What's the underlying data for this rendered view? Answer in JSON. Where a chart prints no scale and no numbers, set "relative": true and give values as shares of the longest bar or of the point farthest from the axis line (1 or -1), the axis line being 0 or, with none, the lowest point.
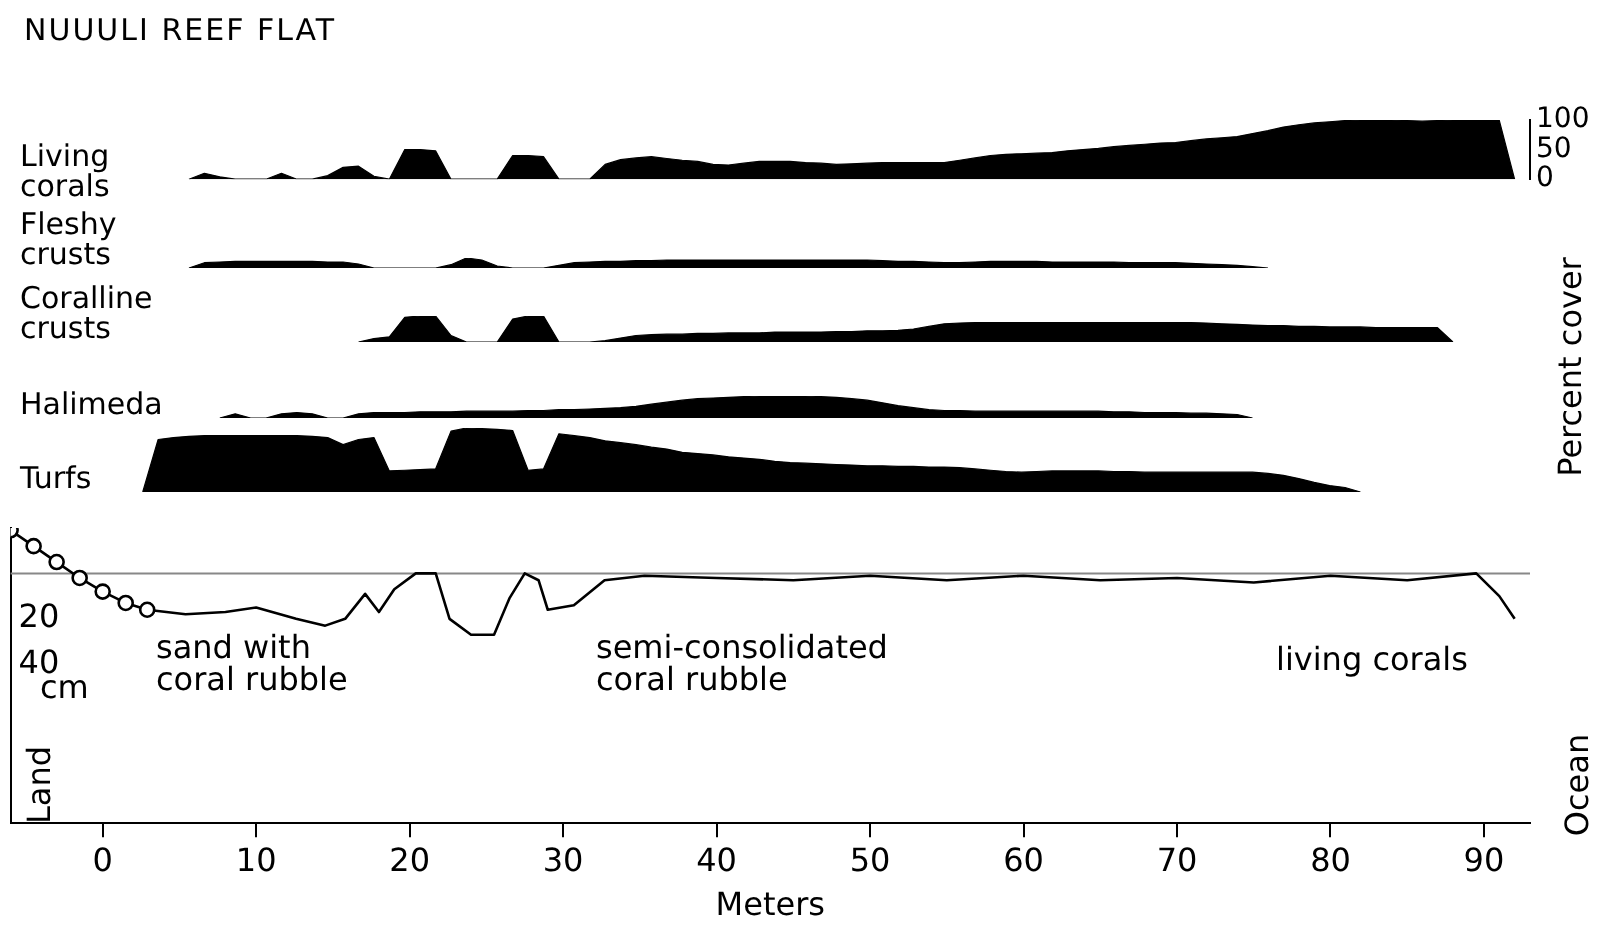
{
  "chart_data": [
    {
      "type": "area",
      "title": "NUUULI REEF FLAT",
      "ylabel": "Percent cover",
      "ylim": [
        0,
        100
      ],
      "yticks": [
        0,
        50,
        100
      ],
      "tick_labels": "y",
      "categories": [
        null,
        null,
        null,
        null,
        null,
        null,
        null,
        null,
        null,
        null,
        null,
        null,
        null,
        null,
        null,
        null,
        null,
        null,
        null,
        null,
        null,
        null,
        null,
        null,
        null,
        null,
        null,
        null,
        null,
        null,
        null,
        null,
        null,
        null,
        null,
        null,
        null,
        null,
        null,
        null,
        null,
        null,
        null,
        null,
        null,
        null,
        null,
        null,
        null,
        null,
        null,
        null,
        null,
        null,
        null,
        null,
        null,
        null,
        null,
        null,
        null,
        null,
        null,
        null,
        null,
        null,
        null,
        null,
        null,
        null,
        null,
        null,
        null,
        null,
        null,
        null,
        null,
        null,
        null,
        null,
        null,
        null,
        null,
        null,
        null,
        null,
        null,
        null,
        null,
        null,
        null,
        null,
        null,
        null,
        null,
        null,
        null,
        null,
        null,
        null
      ],
      "series": [
        {
          "name": "Living corals",
          "color": "#000000",
          "values": [
            null,
            null,
            null,
            null,
            null,
            null,
            null,
            null,
            null,
            null,
            null,
            null,
            0,
            10,
            4,
            0,
            0,
            0,
            10,
            0,
            0,
            6,
            20,
            22,
            5,
            0,
            50,
            50,
            48,
            0,
            0,
            0,
            0,
            40,
            40,
            38,
            0,
            0,
            0,
            25,
            33,
            36,
            38,
            35,
            32,
            30,
            25,
            24,
            27,
            30,
            30,
            30,
            28,
            27,
            25,
            26,
            27,
            28,
            28,
            28,
            28,
            28,
            32,
            36,
            40,
            42,
            43,
            44,
            45,
            48,
            50,
            52,
            55,
            57,
            59,
            61,
            62,
            65,
            68,
            70,
            72,
            77,
            82,
            88,
            92,
            95,
            97,
            99,
            100,
            100,
            100,
            99,
            98,
            99,
            100,
            100,
            100,
            100,
            0,
            null
          ]
        }
      ]
    },
    {
      "type": "area",
      "relative": true,
      "tick_labels": false,
      "categories": [
        null,
        null,
        null,
        null,
        null,
        null,
        null,
        null,
        null,
        null,
        null,
        null,
        null,
        null,
        null,
        null,
        null,
        null,
        null,
        null,
        null,
        null,
        null,
        null,
        null,
        null,
        null,
        null,
        null,
        null,
        null,
        null,
        null,
        null,
        null,
        null,
        null,
        null,
        null,
        null,
        null,
        null,
        null,
        null,
        null,
        null,
        null,
        null,
        null,
        null,
        null,
        null,
        null,
        null,
        null,
        null,
        null,
        null,
        null,
        null,
        null,
        null,
        null,
        null,
        null,
        null,
        null,
        null,
        null,
        null,
        null,
        null,
        null,
        null,
        null,
        null,
        null,
        null,
        null,
        null,
        null,
        null,
        null,
        null,
        null,
        null,
        null,
        null,
        null,
        null,
        null,
        null,
        null,
        null,
        null,
        null,
        null,
        null,
        null,
        null
      ],
      "series": [
        {
          "name": "Fleshy crusts",
          "color": "#000000",
          "values": [
            null,
            null,
            null,
            null,
            null,
            null,
            null,
            null,
            null,
            null,
            null,
            null,
            0,
            0.53,
            0.6,
            0.67,
            0.67,
            0.67,
            0.67,
            0.67,
            0.67,
            0.6,
            0.6,
            0.4,
            0,
            0,
            0,
            0,
            0,
            0.33,
            1,
            0.8,
            0.2,
            0,
            0,
            0,
            0.27,
            0.53,
            0.6,
            0.67,
            0.67,
            0.73,
            0.73,
            0.8,
            0.8,
            0.8,
            0.8,
            0.8,
            0.8,
            0.8,
            0.8,
            0.8,
            0.8,
            0.8,
            0.8,
            0.8,
            0.8,
            0.73,
            0.67,
            0.67,
            0.6,
            0.53,
            0.53,
            0.6,
            0.67,
            0.67,
            0.67,
            0.67,
            0.6,
            0.6,
            0.6,
            0.6,
            0.6,
            0.53,
            0.53,
            0.53,
            0.53,
            0.47,
            0.4,
            0.33,
            0.27,
            0.13,
            0,
            null,
            null,
            null,
            null,
            null,
            null,
            null,
            null,
            null,
            null,
            null,
            null,
            null,
            null,
            null,
            null,
            null
          ]
        }
      ]
    },
    {
      "type": "area",
      "relative": true,
      "tick_labels": false,
      "categories": [
        null,
        null,
        null,
        null,
        null,
        null,
        null,
        null,
        null,
        null,
        null,
        null,
        null,
        null,
        null,
        null,
        null,
        null,
        null,
        null,
        null,
        null,
        null,
        null,
        null,
        null,
        null,
        null,
        null,
        null,
        null,
        null,
        null,
        null,
        null,
        null,
        null,
        null,
        null,
        null,
        null,
        null,
        null,
        null,
        null,
        null,
        null,
        null,
        null,
        null,
        null,
        null,
        null,
        null,
        null,
        null,
        null,
        null,
        null,
        null,
        null,
        null,
        null,
        null,
        null,
        null,
        null,
        null,
        null,
        null,
        null,
        null,
        null,
        null,
        null,
        null,
        null,
        null,
        null,
        null,
        null,
        null,
        null,
        null,
        null,
        null,
        null,
        null,
        null,
        null,
        null,
        null,
        null,
        null,
        null,
        null,
        null,
        null,
        null,
        null
      ],
      "series": [
        {
          "name": "Coralline crusts",
          "color": "#000000",
          "values": [
            null,
            null,
            null,
            null,
            null,
            null,
            null,
            null,
            null,
            null,
            null,
            null,
            null,
            null,
            null,
            null,
            null,
            null,
            null,
            null,
            null,
            null,
            null,
            0,
            0.13,
            0.2,
            0.95,
            1,
            1,
            0.25,
            0,
            0,
            0,
            0.88,
            1,
            1,
            0,
            0,
            0,
            0.05,
            0.15,
            0.25,
            0.28,
            0.3,
            0.3,
            0.33,
            0.33,
            0.35,
            0.35,
            0.35,
            0.38,
            0.38,
            0.38,
            0.38,
            0.4,
            0.4,
            0.43,
            0.43,
            0.45,
            0.5,
            0.6,
            0.7,
            0.73,
            0.75,
            0.75,
            0.75,
            0.75,
            0.75,
            0.75,
            0.75,
            0.75,
            0.75,
            0.75,
            0.75,
            0.75,
            0.75,
            0.75,
            0.75,
            0.73,
            0.7,
            0.68,
            0.65,
            0.63,
            0.63,
            0.6,
            0.6,
            0.58,
            0.58,
            0.58,
            0.55,
            0.55,
            0.55,
            0.55,
            0.55,
            0,
            null,
            null,
            null,
            null,
            null
          ]
        }
      ]
    },
    {
      "type": "area",
      "relative": true,
      "tick_labels": false,
      "categories": [
        null,
        null,
        null,
        null,
        null,
        null,
        null,
        null,
        null,
        null,
        null,
        null,
        null,
        null,
        null,
        null,
        null,
        null,
        null,
        null,
        null,
        null,
        null,
        null,
        null,
        null,
        null,
        null,
        null,
        null,
        null,
        null,
        null,
        null,
        null,
        null,
        null,
        null,
        null,
        null,
        null,
        null,
        null,
        null,
        null,
        null,
        null,
        null,
        null,
        null,
        null,
        null,
        null,
        null,
        null,
        null,
        null,
        null,
        null,
        null,
        null,
        null,
        null,
        null,
        null,
        null,
        null,
        null,
        null,
        null,
        null,
        null,
        null,
        null,
        null,
        null,
        null,
        null,
        null,
        null,
        null,
        null,
        null,
        null,
        null,
        null,
        null,
        null,
        null,
        null,
        null,
        null,
        null,
        null,
        null,
        null,
        null,
        null,
        null,
        null
      ],
      "series": [
        {
          "name": "Halimeda",
          "color": "#000000",
          "values": [
            null,
            null,
            null,
            null,
            null,
            null,
            null,
            null,
            null,
            null,
            null,
            null,
            null,
            null,
            0,
            0.19,
            0,
            0,
            0.19,
            0.25,
            0.19,
            0,
            0,
            0.19,
            0.25,
            0.25,
            0.25,
            0.28,
            0.28,
            0.28,
            0.31,
            0.31,
            0.31,
            0.31,
            0.34,
            0.34,
            0.38,
            0.38,
            0.41,
            0.44,
            0.47,
            0.53,
            0.63,
            0.72,
            0.81,
            0.88,
            0.91,
            0.94,
            0.97,
            1,
            1,
            1,
            1,
            0.97,
            0.94,
            0.88,
            0.81,
            0.69,
            0.56,
            0.47,
            0.38,
            0.34,
            0.34,
            0.31,
            0.31,
            0.31,
            0.31,
            0.31,
            0.31,
            0.31,
            0.31,
            0.31,
            0.28,
            0.28,
            0.25,
            0.25,
            0.25,
            0.22,
            0.22,
            0.19,
            0.16,
            0,
            null,
            null,
            null,
            null,
            null,
            null,
            null,
            null,
            null,
            null,
            null,
            null,
            null,
            null,
            null,
            null,
            null,
            null
          ]
        }
      ]
    },
    {
      "type": "area",
      "relative": true,
      "tick_labels": false,
      "categories": [
        null,
        null,
        null,
        null,
        null,
        null,
        null,
        null,
        null,
        null,
        null,
        null,
        null,
        null,
        null,
        null,
        null,
        null,
        null,
        null,
        null,
        null,
        null,
        null,
        null,
        null,
        null,
        null,
        null,
        null,
        null,
        null,
        null,
        null,
        null,
        null,
        null,
        null,
        null,
        null,
        null,
        null,
        null,
        null,
        null,
        null,
        null,
        null,
        null,
        null,
        null,
        null,
        null,
        null,
        null,
        null,
        null,
        null,
        null,
        null,
        null,
        null,
        null,
        null,
        null,
        null,
        null,
        null,
        null,
        null,
        null,
        null,
        null,
        null,
        null,
        null,
        null,
        null,
        null,
        null,
        null,
        null,
        null,
        null,
        null,
        null,
        null,
        null,
        null,
        null,
        null,
        null,
        null,
        null,
        null,
        null,
        null,
        null,
        null,
        null
      ],
      "series": [
        {
          "name": "Turfs",
          "color": "#000000",
          "values": [
            null,
            null,
            null,
            null,
            null,
            null,
            null,
            null,
            null,
            0,
            0.82,
            0.85,
            0.87,
            0.88,
            0.88,
            0.88,
            0.88,
            0.88,
            0.88,
            0.88,
            0.87,
            0.85,
            0.74,
            0.82,
            0.85,
            0.33,
            0.34,
            0.35,
            0.36,
            0.95,
            1,
            0.99,
            0.98,
            0.96,
            0.34,
            0.36,
            0.91,
            0.88,
            0.85,
            0.8,
            0.77,
            0.74,
            0.7,
            0.67,
            0.62,
            0.6,
            0.58,
            0.55,
            0.53,
            0.51,
            0.48,
            0.46,
            0.45,
            0.44,
            0.43,
            0.42,
            0.41,
            0.41,
            0.4,
            0.4,
            0.39,
            0.39,
            0.38,
            0.36,
            0.34,
            0.32,
            0.31,
            0.32,
            0.33,
            0.33,
            0.33,
            0.33,
            0.32,
            0.32,
            0.31,
            0.31,
            0.31,
            0.31,
            0.31,
            0.31,
            0.31,
            0.31,
            0.29,
            0.26,
            0.21,
            0.15,
            0.1,
            0.07,
            0,
            null,
            null,
            null,
            null,
            null,
            null,
            null,
            null,
            null,
            null,
            null
          ]
        }
      ]
    },
    {
      "type": "line",
      "xlabel": "Meters",
      "ylabel": "cm",
      "xlim": [
        -6,
        93
      ],
      "xticks": [
        0,
        10,
        20,
        30,
        40,
        50,
        60,
        70,
        80,
        90
      ],
      "ylim": [
        110,
        -20
      ],
      "yticks": [
        20,
        40
      ],
      "marker": "none",
      "ref_lines": [
        {
          "axis": "y",
          "value": 0,
          "color": "#888888"
        }
      ],
      "annotations": [
        "sand with\ncoral rubble",
        "semi-consolidated\ncoral rubble",
        "living corals",
        "Land",
        "Ocean"
      ],
      "series": [
        {
          "color": "#000000",
          "marker": "circle",
          "x": [
            -6,
            -4.5,
            -3,
            -1.5,
            0,
            1.5,
            2.9
          ],
          "values": [
            -19,
            -12,
            -5,
            2,
            8,
            13,
            16
          ]
        },
        {
          "color": "#000000",
          "x": [
            2.9,
            5.4,
            8,
            10,
            12.6,
            14.5,
            15.8,
            17.1,
            18,
            19,
            20.4,
            21.7,
            22.6,
            24,
            25.5,
            26.5,
            27.5,
            28.4,
            29,
            30.7,
            32.7,
            35.3,
            40,
            45,
            50,
            55,
            60,
            65,
            70,
            75,
            80,
            85,
            89.5,
            91,
            92
          ],
          "values": [
            16,
            18,
            17,
            15,
            20,
            23,
            20,
            9,
            17,
            7,
            0,
            0,
            20,
            27,
            27,
            11,
            0,
            3,
            16,
            14,
            3,
            1,
            2,
            3,
            1,
            3,
            1,
            3,
            2,
            4,
            1,
            3,
            0,
            10,
            20
          ]
        }
      ]
    }
  ]
}
